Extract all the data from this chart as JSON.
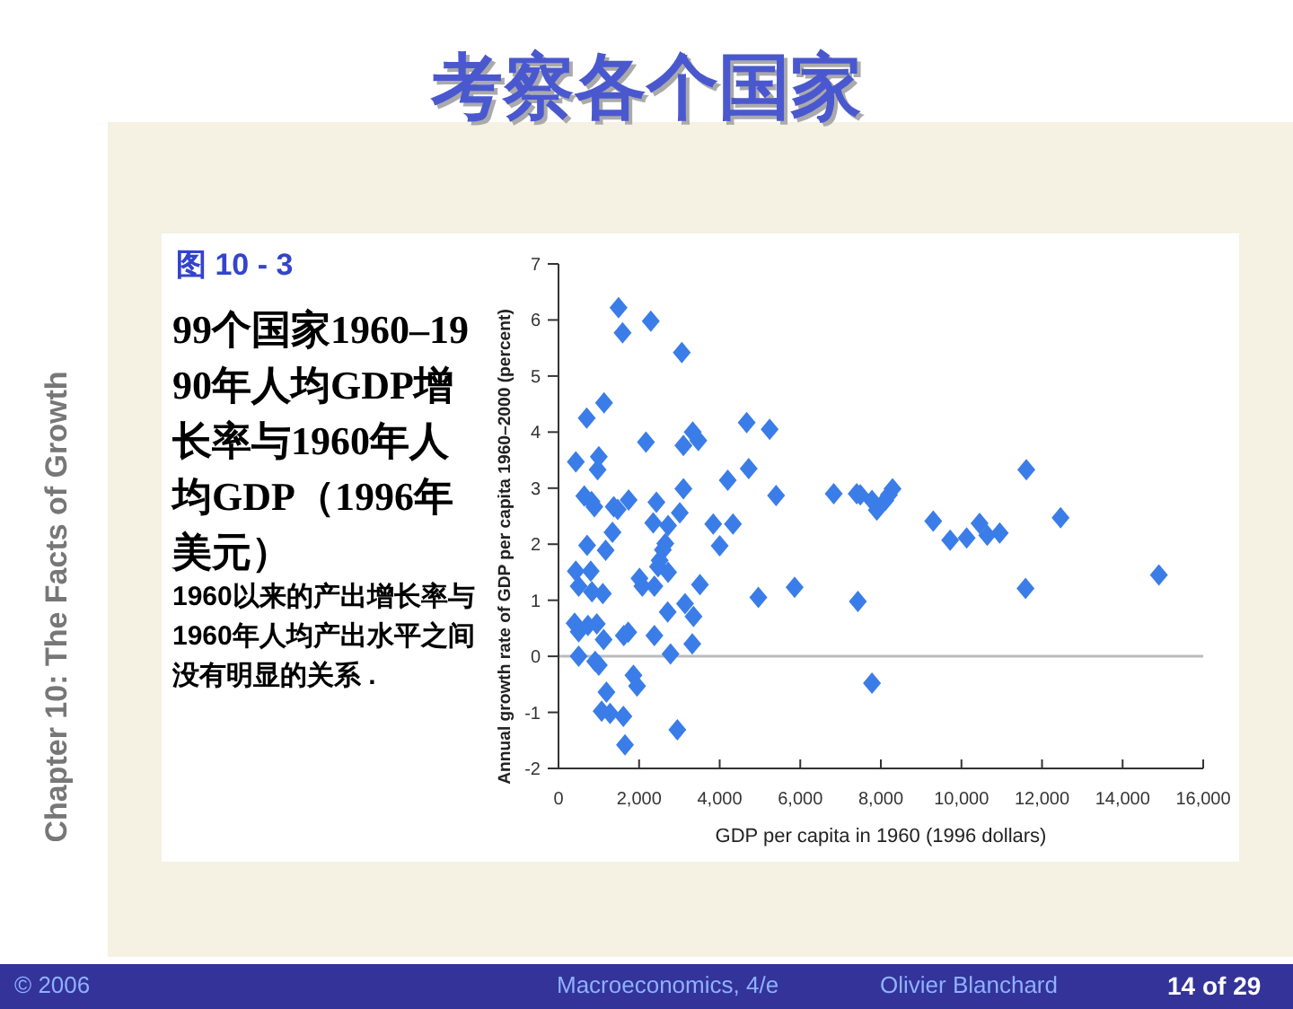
{
  "chart_data": {
    "type": "scatter",
    "title": "考察各个国家",
    "subtitle": "99个国家1960–1990年人均GDP增长率与1960年人均GDP（1996年美元）",
    "xlabel": "GDP per capita in 1960 (1996 dollars)",
    "ylabel": "Annual growth rate of GDP per capita 1960–2000 (percent)",
    "annotations": [
      "图 10 - 3",
      "1960以来的产出增长率与1960年人均产出水平之间没有明显的关系 .",
      "Chapter 10: The Facts of Growth",
      "© 2006",
      "Macroeconomics, 4/e",
      "Olivier Blanchard",
      "14 of 29"
    ],
    "xlim": [
      0,
      16000
    ],
    "ylim": [
      -2,
      7
    ],
    "xticks": [
      0,
      {
        "value": 2000,
        "label": "2,000"
      },
      {
        "value": 4000,
        "label": "4,000"
      },
      {
        "value": 6000,
        "label": "6,000"
      },
      {
        "value": 8000,
        "label": "8,000"
      },
      {
        "value": 10000,
        "label": "10,000"
      },
      {
        "value": 12000,
        "label": "12,000"
      },
      {
        "value": 14000,
        "label": "14,000"
      },
      {
        "value": 16000,
        "label": "16,000"
      }
    ],
    "yticks": [
      -2,
      -1,
      0,
      1,
      2,
      3,
      4,
      5,
      6,
      7
    ],
    "ref_lines": [
      {
        "axis": "y",
        "value": 0,
        "color": "#bbbbbb"
      }
    ],
    "marker": "diamond",
    "series": [
      {
        "color": "#3b7de8",
        "x": [
          430,
          700,
          1130,
          1490,
          1590,
          2290,
          3060,
          2170,
          3100,
          3330,
          3470,
          4670,
          5240,
          4720,
          4200,
          3100,
          5400,
          6830,
          3840,
          4330,
          4000,
          4960,
          5860,
          3510,
          3140,
          3350,
          3320,
          2950,
          3010,
          2720,
          2650,
          2590,
          2510,
          2470,
          2720,
          2710,
          2780,
          2430,
          2350,
          2380,
          2380,
          2010,
          2080,
          1740,
          1370,
          1470,
          1340,
          1170,
          710,
          640,
          820,
          890,
          1000,
          970,
          430,
          500,
          800,
          830,
          1100,
          400,
          500,
          730,
          950,
          500,
          910,
          1000,
          1120,
          1620,
          1730,
          1190,
          1070,
          1280,
          1610,
          1650,
          1860,
          1950,
          7400,
          7490,
          7780,
          7900,
          8110,
          8200,
          8290,
          7430,
          7780,
          9300,
          9720,
          10130,
          10450,
          10640,
          10950,
          11610,
          11590,
          12460,
          14900
        ],
        "values": [
          3.47,
          4.25,
          4.52,
          6.22,
          5.77,
          5.98,
          5.42,
          3.82,
          3.76,
          4.0,
          3.85,
          4.17,
          4.05,
          3.35,
          3.14,
          2.99,
          2.87,
          2.9,
          2.36,
          2.36,
          1.97,
          1.05,
          1.23,
          1.28,
          0.94,
          0.71,
          0.22,
          -1.31,
          2.56,
          2.33,
          2.01,
          1.9,
          1.71,
          1.6,
          1.5,
          0.79,
          0.04,
          2.75,
          2.38,
          1.25,
          0.37,
          1.39,
          1.25,
          2.79,
          2.67,
          2.62,
          2.21,
          1.89,
          1.98,
          2.86,
          2.76,
          2.67,
          3.56,
          3.33,
          1.52,
          1.25,
          1.52,
          1.15,
          1.12,
          0.59,
          0.44,
          0.55,
          0.58,
          0.0,
          -0.09,
          -0.16,
          0.3,
          0.37,
          0.43,
          -0.64,
          -0.98,
          -1.02,
          -1.07,
          -1.58,
          -0.34,
          -0.53,
          2.9,
          2.88,
          2.78,
          2.61,
          2.78,
          2.88,
          2.99,
          0.98,
          -0.48,
          2.41,
          2.07,
          2.11,
          2.37,
          2.16,
          2.2,
          3.33,
          1.21,
          2.47,
          1.45
        ]
      }
    ]
  }
}
